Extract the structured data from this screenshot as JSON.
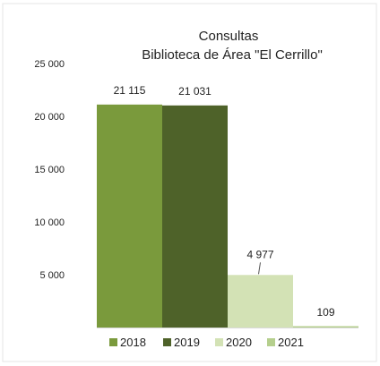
{
  "chart_data": {
    "type": "bar",
    "title": "Consultas",
    "subtitle": "Biblioteca de Área \"El Cerrillo\"",
    "xlabel": "",
    "ylabel": "",
    "categories": [
      "2018",
      "2019",
      "2020",
      "2021"
    ],
    "values": [
      21115,
      21031,
      4977,
      109
    ],
    "data_labels": [
      "21 115",
      "21 031",
      "4 977",
      "109"
    ],
    "colors": [
      "#7A9A3C",
      "#4E6229",
      "#D3E2B5",
      "#B5CF8D"
    ],
    "ylim": [
      0,
      25000
    ],
    "yticks": [
      5000,
      10000,
      15000,
      20000,
      25000
    ],
    "ytick_labels": [
      "5 000",
      "10 000",
      "15 000",
      "20 000",
      "25 000"
    ],
    "grid": false,
    "legend": {
      "position": "bottom",
      "entries": [
        "2018",
        "2019",
        "2020",
        "2021"
      ]
    }
  }
}
